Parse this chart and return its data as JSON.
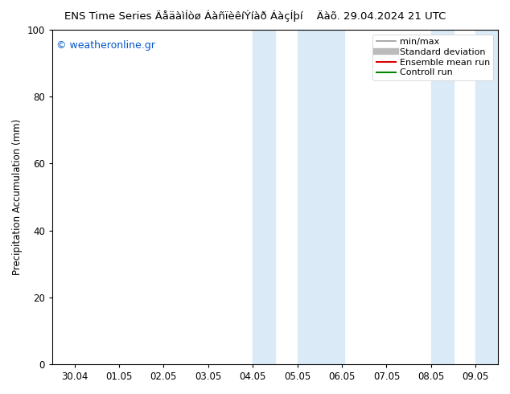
{
  "title": "ENS Time Series ÄåäàìÍòø ÁàñïèêíÝíàð ÁàçÍþí    Äàõ. 29.04.2024 21 UTC",
  "ylabel": "Precipitation Accumulation (mm)",
  "ylim": [
    0,
    100
  ],
  "xtick_labels": [
    "30.04",
    "01.05",
    "02.05",
    "03.05",
    "04.05",
    "05.05",
    "06.05",
    "07.05",
    "08.05",
    "09.05"
  ],
  "ytick_values": [
    0,
    20,
    40,
    60,
    80,
    100
  ],
  "shaded_regions": [
    {
      "xstart": 4.0,
      "xend": 4.5,
      "color": "#daeaf6"
    },
    {
      "xstart": 5.0,
      "xend": 6.05,
      "color": "#daeaf6"
    },
    {
      "xstart": 8.0,
      "xend": 8.5,
      "color": "#daeaf6"
    },
    {
      "xstart": 9.0,
      "xend": 9.5,
      "color": "#daeaf6"
    }
  ],
  "copyright_text": "© weatheronline.gr",
  "copyright_color": "#0055cc",
  "legend_entries": [
    {
      "label": "min/max",
      "color": "#999999",
      "lw": 1.2,
      "marker": "none"
    },
    {
      "label": "Standard deviation",
      "color": "#bbbbbb",
      "lw": 6.0,
      "marker": "none"
    },
    {
      "label": "Ensemble mean run",
      "color": "#dd0000",
      "lw": 1.5,
      "marker": "none"
    },
    {
      "label": "Controll run",
      "color": "#008800",
      "lw": 1.5,
      "marker": "none"
    }
  ],
  "background_color": "#ffffff",
  "title_fontsize": 9.5,
  "axis_label_fontsize": 8.5,
  "tick_fontsize": 8.5,
  "legend_fontsize": 8.0,
  "copyright_fontsize": 9.0
}
